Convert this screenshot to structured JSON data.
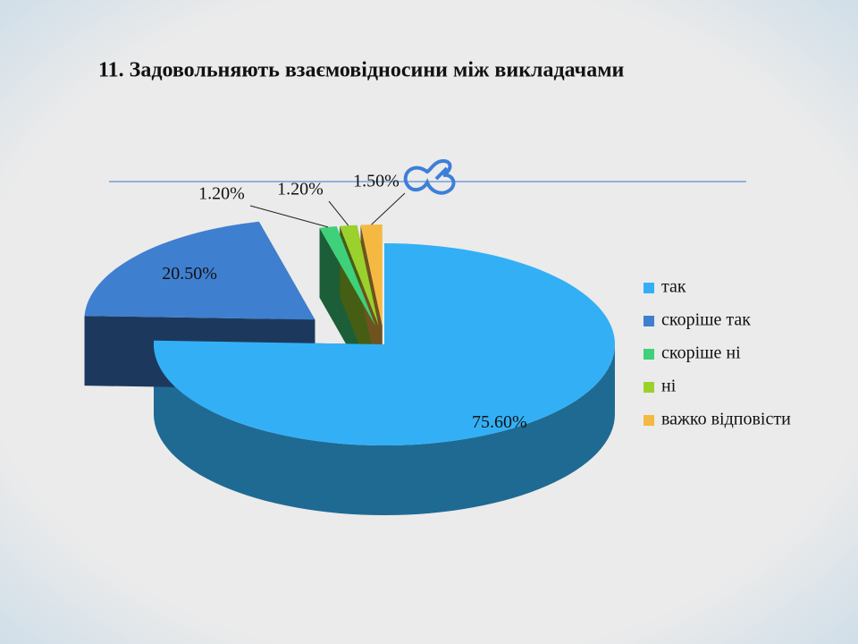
{
  "chart_data": {
    "type": "pie",
    "title": "11. Задовольняють взаємовідносини між викладачами",
    "categories": [
      "так",
      "скоріше так",
      "скоріше ні",
      "ні",
      "важко відповісти"
    ],
    "values": [
      75.6,
      20.5,
      1.2,
      1.2,
      1.5
    ],
    "value_labels": [
      "75.60%",
      "20.50%",
      "1.20%",
      "1.20%",
      "1.50%"
    ],
    "colors": [
      "#33b0f5",
      "#3f7fcf",
      "#3fd07a",
      "#9ad12c",
      "#f5b942"
    ]
  }
}
